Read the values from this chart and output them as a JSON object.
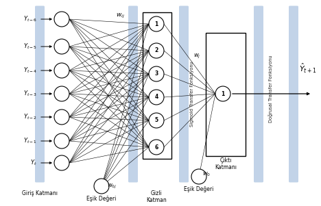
{
  "input_labels": [
    "Y_{t-6}",
    "Y_{t-5}",
    "Y_{t-4}",
    "Y_{t-3}",
    "Y_{t-2}",
    "Y_{t-1}",
    "Y_t"
  ],
  "hidden_labels": [
    "1",
    "2",
    "3",
    "4",
    "5",
    "6"
  ],
  "output_label": "1",
  "layer_labels": {
    "input": "Giriş Katmanı",
    "hidden": "Gizli\nKatman",
    "output": "Çıktı\nKatmanı"
  },
  "threshold_labels": {
    "input": "Eşik Değeri",
    "hidden": "Eşik Değeri"
  },
  "weight_labels": {
    "wij": "w_{ij}",
    "w0j": "w_{0j}",
    "wj": "w_j",
    "w0": "w_0"
  },
  "transfer_labels": {
    "sigmoid": "Sigmoid Transfer Fonksiyonu",
    "linear": "Doğrusal Transfer Fonksiyonu"
  },
  "output_hat": "$\\hat{Y}_{t+1}$",
  "background_color": "#ffffff",
  "node_color": "#ffffff",
  "node_edge_color": "#000000",
  "line_color": "#000000",
  "panel_color": "#b8cce4",
  "box_color": "#ffffff",
  "box_edge_color": "#000000"
}
